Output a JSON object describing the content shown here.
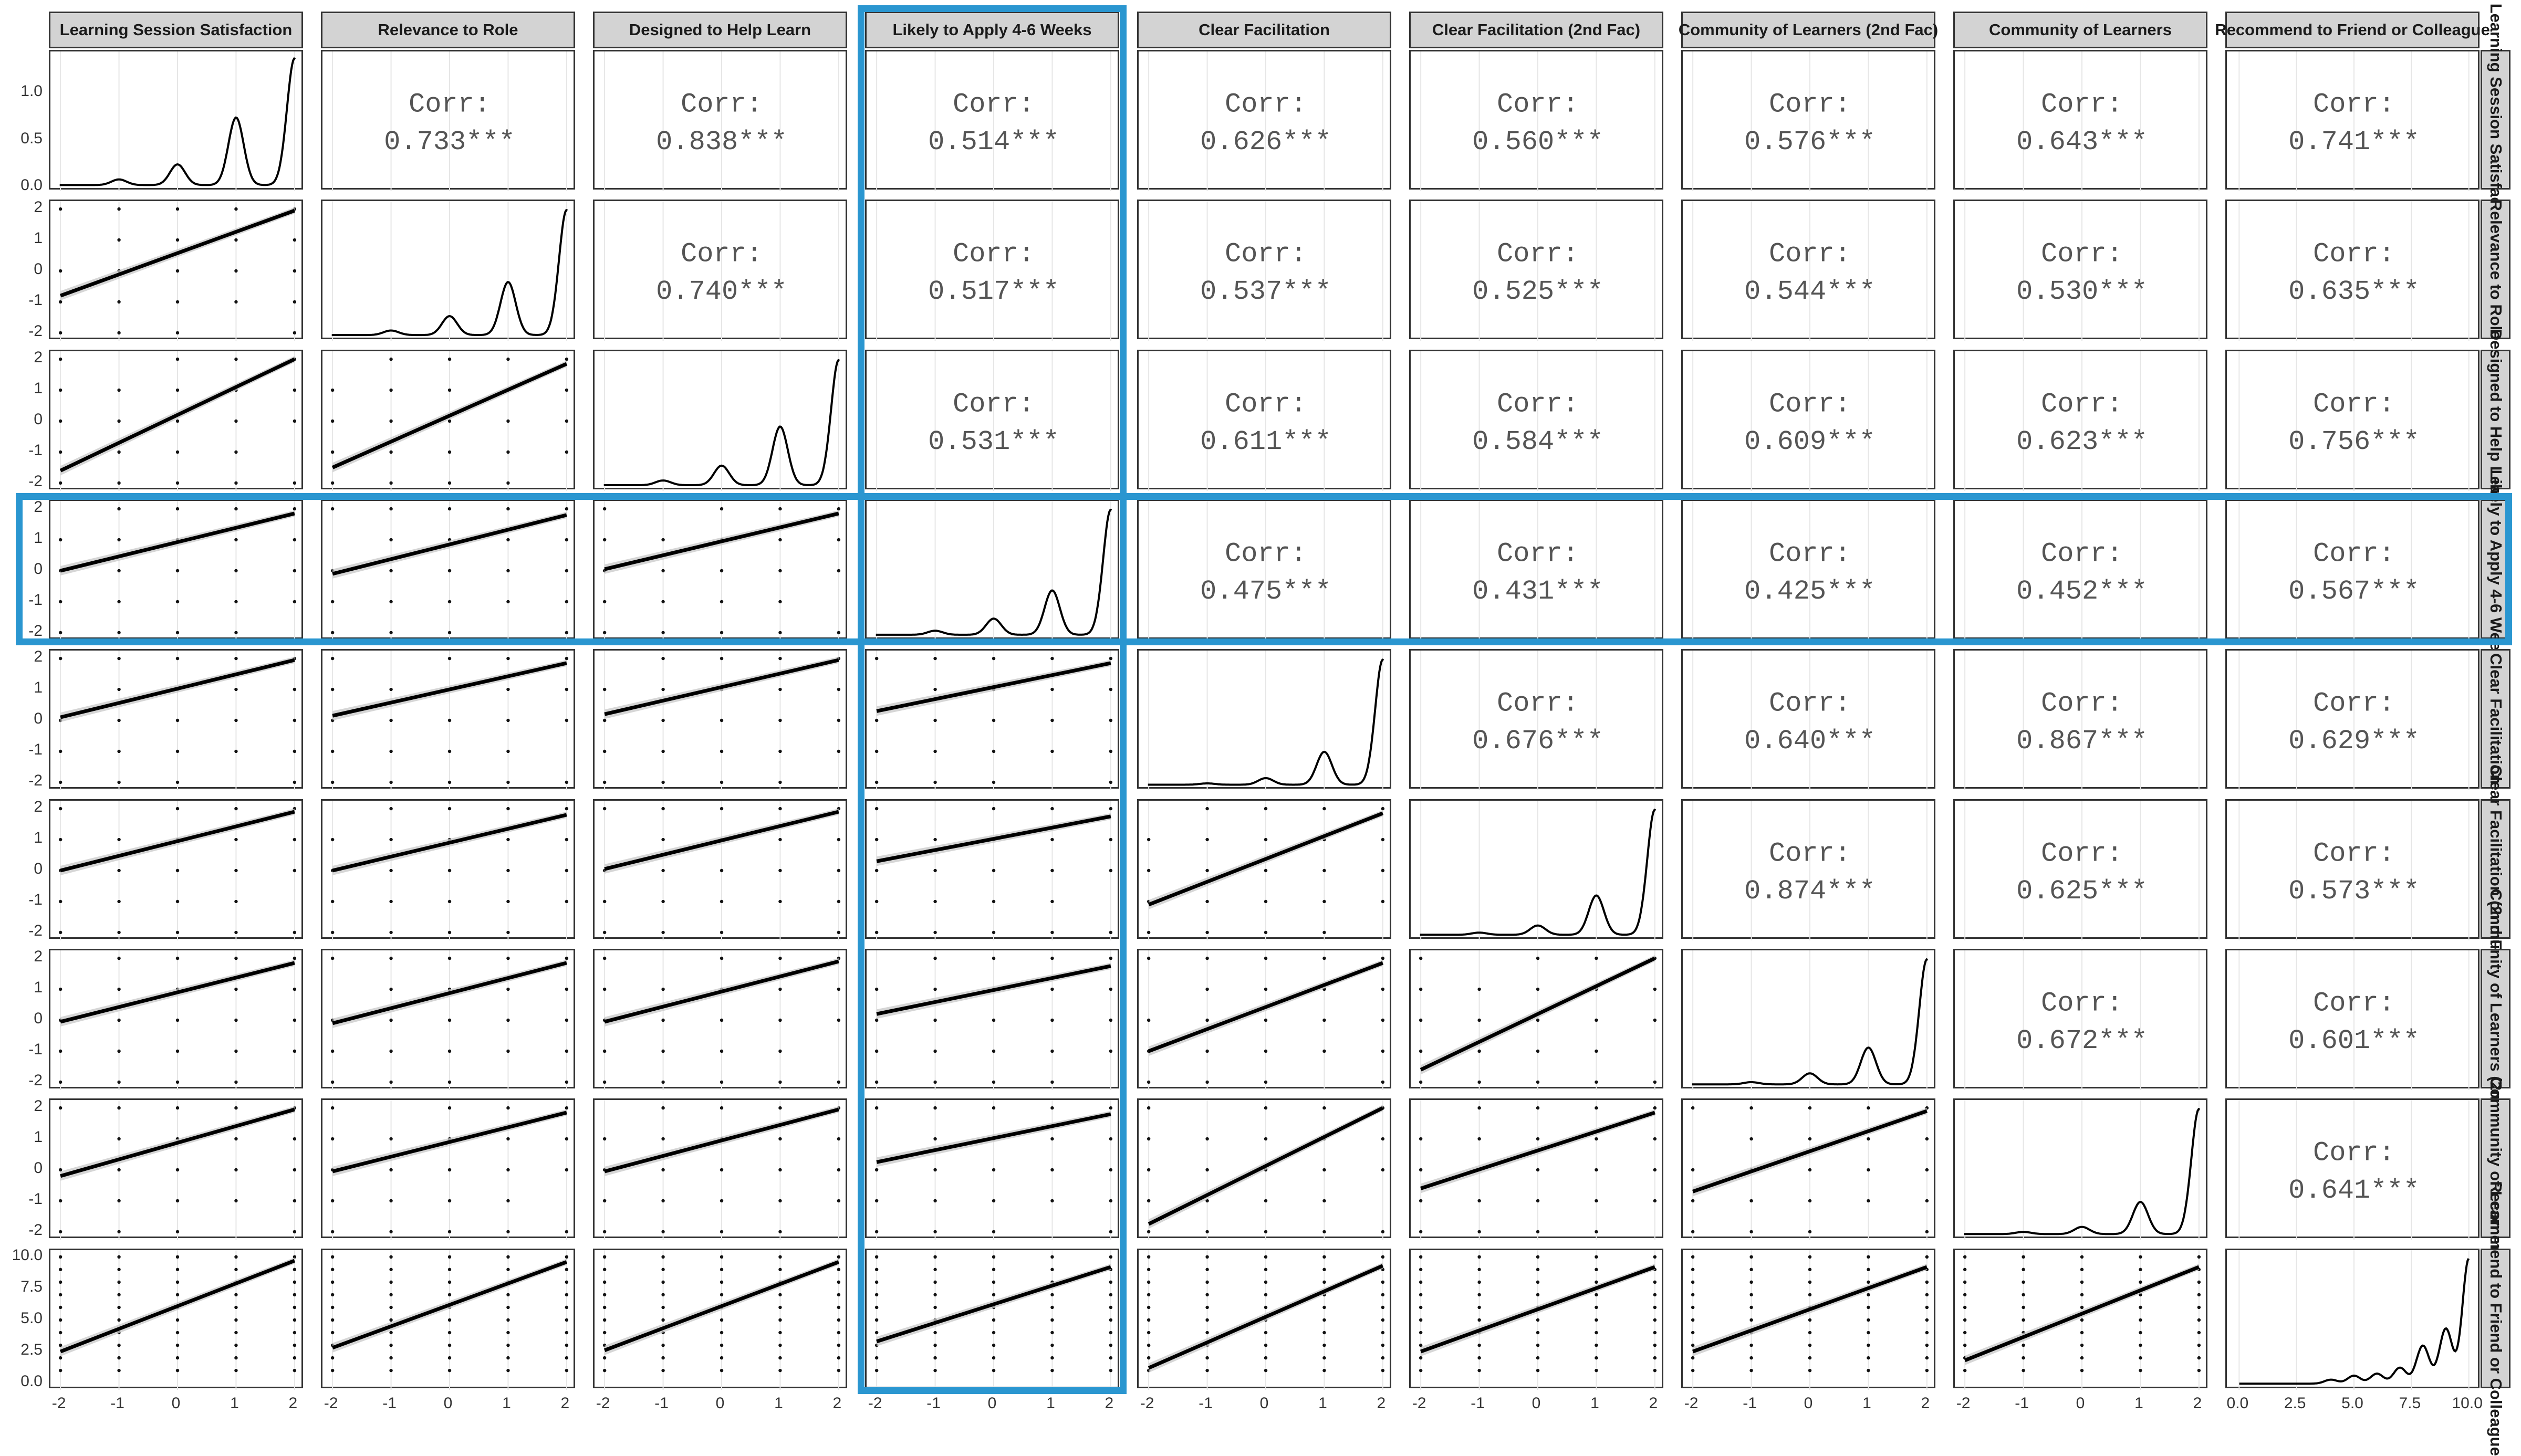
{
  "chart_data": {
    "type": "scatter",
    "variables": [
      "Learning Session Satisfaction",
      "Relevance to Role",
      "Designed to Help Learn",
      "Likely to Apply 4-6 Weeks",
      "Clear Facilitation",
      "Clear Facilitation (2nd Fac)",
      "Community of Learners (2nd Fac)",
      "Community of Learners",
      "Recommend to Friend or Colleague"
    ],
    "corr_prefix": "Corr:",
    "correlations": [
      {
        "row": 0,
        "col": 1,
        "value": 0.733,
        "label": "0.733***"
      },
      {
        "row": 0,
        "col": 2,
        "value": 0.838,
        "label": "0.838***"
      },
      {
        "row": 0,
        "col": 3,
        "value": 0.514,
        "label": "0.514***"
      },
      {
        "row": 0,
        "col": 4,
        "value": 0.626,
        "label": "0.626***"
      },
      {
        "row": 0,
        "col": 5,
        "value": 0.56,
        "label": "0.560***"
      },
      {
        "row": 0,
        "col": 6,
        "value": 0.576,
        "label": "0.576***"
      },
      {
        "row": 0,
        "col": 7,
        "value": 0.643,
        "label": "0.643***"
      },
      {
        "row": 0,
        "col": 8,
        "value": 0.741,
        "label": "0.741***"
      },
      {
        "row": 1,
        "col": 2,
        "value": 0.74,
        "label": "0.740***"
      },
      {
        "row": 1,
        "col": 3,
        "value": 0.517,
        "label": "0.517***"
      },
      {
        "row": 1,
        "col": 4,
        "value": 0.537,
        "label": "0.537***"
      },
      {
        "row": 1,
        "col": 5,
        "value": 0.525,
        "label": "0.525***"
      },
      {
        "row": 1,
        "col": 6,
        "value": 0.544,
        "label": "0.544***"
      },
      {
        "row": 1,
        "col": 7,
        "value": 0.53,
        "label": "0.530***"
      },
      {
        "row": 1,
        "col": 8,
        "value": 0.635,
        "label": "0.635***"
      },
      {
        "row": 2,
        "col": 3,
        "value": 0.531,
        "label": "0.531***"
      },
      {
        "row": 2,
        "col": 4,
        "value": 0.611,
        "label": "0.611***"
      },
      {
        "row": 2,
        "col": 5,
        "value": 0.584,
        "label": "0.584***"
      },
      {
        "row": 2,
        "col": 6,
        "value": 0.609,
        "label": "0.609***"
      },
      {
        "row": 2,
        "col": 7,
        "value": 0.623,
        "label": "0.623***"
      },
      {
        "row": 2,
        "col": 8,
        "value": 0.756,
        "label": "0.756***"
      },
      {
        "row": 3,
        "col": 4,
        "value": 0.475,
        "label": "0.475***"
      },
      {
        "row": 3,
        "col": 5,
        "value": 0.431,
        "label": "0.431***"
      },
      {
        "row": 3,
        "col": 6,
        "value": 0.425,
        "label": "0.425***"
      },
      {
        "row": 3,
        "col": 7,
        "value": 0.452,
        "label": "0.452***"
      },
      {
        "row": 3,
        "col": 8,
        "value": 0.567,
        "label": "0.567***"
      },
      {
        "row": 4,
        "col": 5,
        "value": 0.676,
        "label": "0.676***"
      },
      {
        "row": 4,
        "col": 6,
        "value": 0.64,
        "label": "0.640***"
      },
      {
        "row": 4,
        "col": 7,
        "value": 0.867,
        "label": "0.867***"
      },
      {
        "row": 4,
        "col": 8,
        "value": 0.629,
        "label": "0.629***"
      },
      {
        "row": 5,
        "col": 6,
        "value": 0.874,
        "label": "0.874***"
      },
      {
        "row": 5,
        "col": 7,
        "value": 0.625,
        "label": "0.625***"
      },
      {
        "row": 5,
        "col": 8,
        "value": 0.573,
        "label": "0.573***"
      },
      {
        "row": 6,
        "col": 7,
        "value": 0.672,
        "label": "0.672***"
      },
      {
        "row": 6,
        "col": 8,
        "value": 0.601,
        "label": "0.601***"
      },
      {
        "row": 7,
        "col": 8,
        "value": 0.641,
        "label": "0.641***"
      }
    ],
    "scatter_points": [
      -2,
      -1,
      0,
      1,
      2
    ],
    "scatter_points_last_row": [
      0,
      1,
      2,
      3,
      4,
      5,
      6,
      7,
      8,
      9,
      10
    ],
    "fit_lines": [
      {
        "row": 1,
        "col": 0,
        "y_at_xmin": -0.8,
        "y_at_xmax": 1.95
      },
      {
        "row": 2,
        "col": 0,
        "y_at_xmin": -1.6,
        "y_at_xmax": 2.0
      },
      {
        "row": 2,
        "col": 1,
        "y_at_xmin": -1.5,
        "y_at_xmax": 1.85
      },
      {
        "row": 3,
        "col": 0,
        "y_at_xmin": 0.0,
        "y_at_xmax": 1.85
      },
      {
        "row": 3,
        "col": 1,
        "y_at_xmin": -0.1,
        "y_at_xmax": 1.8
      },
      {
        "row": 3,
        "col": 2,
        "y_at_xmin": 0.05,
        "y_at_xmax": 1.85
      },
      {
        "row": 4,
        "col": 0,
        "y_at_xmin": 0.1,
        "y_at_xmax": 1.95
      },
      {
        "row": 4,
        "col": 1,
        "y_at_xmin": 0.15,
        "y_at_xmax": 1.85
      },
      {
        "row": 4,
        "col": 2,
        "y_at_xmin": 0.2,
        "y_at_xmax": 1.95
      },
      {
        "row": 4,
        "col": 3,
        "y_at_xmin": 0.3,
        "y_at_xmax": 1.85
      },
      {
        "row": 5,
        "col": 0,
        "y_at_xmin": 0.0,
        "y_at_xmax": 1.9
      },
      {
        "row": 5,
        "col": 1,
        "y_at_xmin": 0.0,
        "y_at_xmax": 1.8
      },
      {
        "row": 5,
        "col": 2,
        "y_at_xmin": 0.05,
        "y_at_xmax": 1.9
      },
      {
        "row": 5,
        "col": 3,
        "y_at_xmin": 0.3,
        "y_at_xmax": 1.75
      },
      {
        "row": 5,
        "col": 4,
        "y_at_xmin": -1.1,
        "y_at_xmax": 1.85
      },
      {
        "row": 6,
        "col": 0,
        "y_at_xmin": -0.05,
        "y_at_xmax": 1.85
      },
      {
        "row": 6,
        "col": 1,
        "y_at_xmin": -0.1,
        "y_at_xmax": 1.85
      },
      {
        "row": 6,
        "col": 2,
        "y_at_xmin": -0.05,
        "y_at_xmax": 1.9
      },
      {
        "row": 6,
        "col": 3,
        "y_at_xmin": 0.2,
        "y_at_xmax": 1.75
      },
      {
        "row": 6,
        "col": 4,
        "y_at_xmin": -1.0,
        "y_at_xmax": 1.85
      },
      {
        "row": 6,
        "col": 5,
        "y_at_xmin": -1.6,
        "y_at_xmax": 2.0
      },
      {
        "row": 7,
        "col": 0,
        "y_at_xmin": -0.2,
        "y_at_xmax": 1.95
      },
      {
        "row": 7,
        "col": 1,
        "y_at_xmin": -0.05,
        "y_at_xmax": 1.85
      },
      {
        "row": 7,
        "col": 2,
        "y_at_xmin": -0.05,
        "y_at_xmax": 1.95
      },
      {
        "row": 7,
        "col": 3,
        "y_at_xmin": 0.25,
        "y_at_xmax": 1.8
      },
      {
        "row": 7,
        "col": 4,
        "y_at_xmin": -1.75,
        "y_at_xmax": 2.0
      },
      {
        "row": 7,
        "col": 5,
        "y_at_xmin": -0.6,
        "y_at_xmax": 1.85
      },
      {
        "row": 7,
        "col": 6,
        "y_at_xmin": -0.7,
        "y_at_xmax": 1.9
      },
      {
        "row": 8,
        "col": 0,
        "y_at_xmin": 2.5,
        "y_at_xmax": 9.7
      },
      {
        "row": 8,
        "col": 1,
        "y_at_xmin": 2.8,
        "y_at_xmax": 9.6
      },
      {
        "row": 8,
        "col": 2,
        "y_at_xmin": 2.6,
        "y_at_xmax": 9.6
      },
      {
        "row": 8,
        "col": 3,
        "y_at_xmin": 3.3,
        "y_at_xmax": 9.2
      },
      {
        "row": 8,
        "col": 4,
        "y_at_xmin": 1.2,
        "y_at_xmax": 9.3
      },
      {
        "row": 8,
        "col": 5,
        "y_at_xmin": 2.5,
        "y_at_xmax": 9.2
      },
      {
        "row": 8,
        "col": 6,
        "y_at_xmin": 2.5,
        "y_at_xmax": 9.2
      },
      {
        "row": 8,
        "col": 7,
        "y_at_xmin": 1.8,
        "y_at_xmax": 9.2
      }
    ],
    "density_peaks": [
      {
        "var": 0,
        "peaks": [
          [
            -1,
            0.06
          ],
          [
            0,
            0.22
          ],
          [
            1,
            0.72
          ],
          [
            2,
            1.35
          ]
        ]
      },
      {
        "var": 1,
        "peaks": [
          [
            -1,
            0.06
          ],
          [
            0,
            0.25
          ],
          [
            1,
            0.7
          ],
          [
            2,
            1.65
          ]
        ]
      },
      {
        "var": 2,
        "peaks": [
          [
            -1,
            0.06
          ],
          [
            0,
            0.25
          ],
          [
            1,
            0.75
          ],
          [
            2,
            1.6
          ]
        ]
      },
      {
        "var": 3,
        "peaks": [
          [
            -1,
            0.05
          ],
          [
            0,
            0.2
          ],
          [
            1,
            0.55
          ],
          [
            2,
            1.55
          ]
        ]
      },
      {
        "var": 4,
        "peaks": [
          [
            -1,
            0.02
          ],
          [
            0,
            0.1
          ],
          [
            1,
            0.5
          ],
          [
            2,
            1.9
          ]
        ]
      },
      {
        "var": 5,
        "peaks": [
          [
            -1,
            0.03
          ],
          [
            0,
            0.13
          ],
          [
            1,
            0.55
          ],
          [
            2,
            1.75
          ]
        ]
      },
      {
        "var": 6,
        "peaks": [
          [
            -1,
            0.03
          ],
          [
            0,
            0.15
          ],
          [
            1,
            0.5
          ],
          [
            2,
            1.7
          ]
        ]
      },
      {
        "var": 7,
        "peaks": [
          [
            -1,
            0.03
          ],
          [
            0,
            0.1
          ],
          [
            1,
            0.45
          ],
          [
            2,
            1.75
          ]
        ]
      },
      {
        "var": 8,
        "peaks": [
          [
            4,
            0.04
          ],
          [
            5,
            0.08
          ],
          [
            6,
            0.1
          ],
          [
            7,
            0.16
          ],
          [
            8,
            0.38
          ],
          [
            9,
            0.55
          ],
          [
            10,
            1.25
          ]
        ]
      }
    ],
    "x_ticks": [
      "-2",
      "-1",
      "0",
      "1",
      "2"
    ],
    "x_ticks_last_col": [
      "0.0",
      "2.5",
      "5.0",
      "7.5",
      "10.0"
    ],
    "y_ticks_first_row": [
      "0.0",
      "0.5",
      "1.0"
    ],
    "y_ticks_likert": [
      "-2",
      "-1",
      "0",
      "1",
      "2"
    ],
    "y_ticks_last_row": [
      "0.0",
      "2.5",
      "5.0",
      "7.5",
      "10.0"
    ],
    "highlight": {
      "row": 3,
      "col": 3,
      "color": "#2a96d0"
    },
    "colors": {
      "strip_bg": "#d3d3d3",
      "panel_border": "#333333",
      "line": "#000000",
      "ribbon": "#c8c8c8",
      "grid": "#e6e6e6",
      "corr_text": "#555555"
    }
  }
}
